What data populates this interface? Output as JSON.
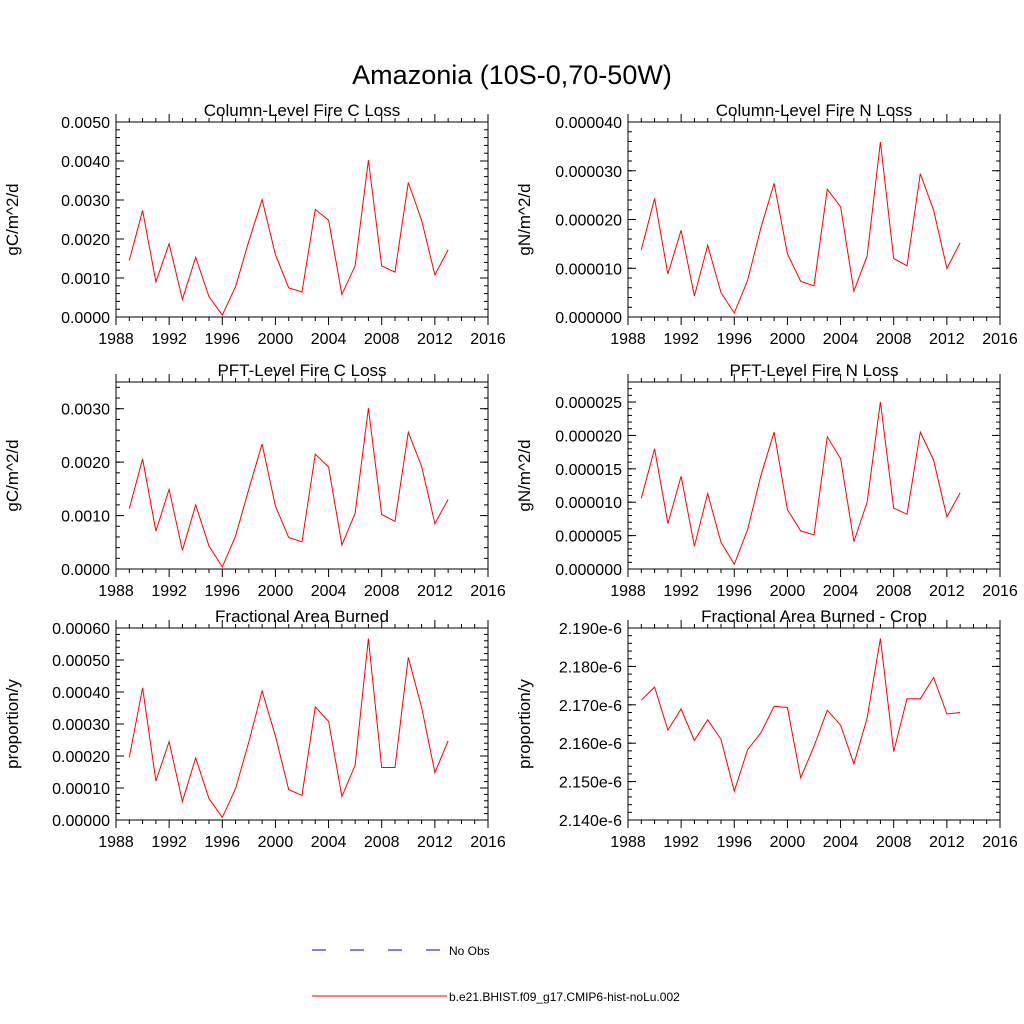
{
  "figure": {
    "title": "Amazonia (10S-0,70-50W)",
    "colors": {
      "model": "#ff0000",
      "obs": "#0000cc",
      "axes": "#000000"
    }
  },
  "legend": {
    "placement": "bottom-center",
    "items": [
      {
        "label": "No Obs",
        "style": "dashed",
        "color": "#0000cc"
      },
      {
        "label": "b.e21.BHIST.f09_g17.CMIP6-hist-noLu.002",
        "style": "solid",
        "color": "#ff0000"
      }
    ]
  },
  "chart_data": [
    {
      "type": "line",
      "title": "Column-Level Fire C Loss",
      "xlabel": "",
      "ylabel": "gC/m^2/d",
      "xlim": [
        1988,
        2016
      ],
      "ylim": [
        0,
        0.005
      ],
      "xticks": [
        "1988",
        "1992",
        "1996",
        "2000",
        "2004",
        "2008",
        "2012",
        "2016"
      ],
      "yticks": [
        "0.0000",
        "0.0010",
        "0.0020",
        "0.0030",
        "0.0040",
        "0.0050"
      ],
      "x": [
        1989,
        1990,
        1991,
        1992,
        1993,
        1994,
        1995,
        1996,
        1997,
        1998,
        1999,
        2000,
        2001,
        2002,
        2003,
        2004,
        2005,
        2006,
        2007,
        2008,
        2009,
        2010,
        2011,
        2012,
        2013
      ],
      "series": [
        {
          "name": "b.e21.BHIST.f09_g17.CMIP6-hist-noLu.002",
          "values": [
            0.00145,
            0.00273,
            0.0009,
            0.00188,
            0.00045,
            0.00153,
            0.00052,
            5e-05,
            0.00078,
            0.00195,
            0.00301,
            0.0016,
            0.00075,
            0.00064,
            0.00276,
            0.00248,
            0.00058,
            0.00131,
            0.00402,
            0.00131,
            0.00115,
            0.00345,
            0.00248,
            0.00108,
            0.00172
          ]
        }
      ]
    },
    {
      "type": "line",
      "title": "Column-Level Fire N Loss",
      "xlabel": "",
      "ylabel": "gN/m^2/d",
      "xlim": [
        1988,
        2016
      ],
      "ylim": [
        0,
        4e-05
      ],
      "xticks": [
        "1988",
        "1992",
        "1996",
        "2000",
        "2004",
        "2008",
        "2012",
        "2016"
      ],
      "yticks": [
        "0.000000",
        "0.000010",
        "0.000020",
        "0.000030",
        "0.000040"
      ],
      "x": [
        1989,
        1990,
        1991,
        1992,
        1993,
        1994,
        1995,
        1996,
        1997,
        1998,
        1999,
        2000,
        2001,
        2002,
        2003,
        2004,
        2005,
        2006,
        2007,
        2008,
        2009,
        2010,
        2011,
        2012,
        2013
      ],
      "series": [
        {
          "name": "b.e21.BHIST.f09_g17.CMIP6-hist-noLu.002",
          "values": [
            1.38e-05,
            2.43e-05,
            8.8e-06,
            1.78e-05,
            4.3e-06,
            1.47e-05,
            5e-06,
            8e-07,
            7.5e-06,
            1.83e-05,
            2.74e-05,
            1.3e-05,
            7.3e-06,
            6.4e-06,
            2.62e-05,
            2.26e-05,
            5.3e-06,
            1.25e-05,
            3.59e-05,
            1.2e-05,
            1.05e-05,
            2.94e-05,
            2.19e-05,
            1e-05,
            1.52e-05
          ]
        }
      ]
    },
    {
      "type": "line",
      "title": "PFT-Level Fire C Loss",
      "xlabel": "",
      "ylabel": "gC/m^2/d",
      "xlim": [
        1988,
        2016
      ],
      "ylim": [
        0,
        0.0035
      ],
      "xticks": [
        "1988",
        "1992",
        "1996",
        "2000",
        "2004",
        "2008",
        "2012",
        "2016"
      ],
      "yticks": [
        "0.0000",
        "0.0010",
        "0.0020",
        "0.0030"
      ],
      "x": [
        1989,
        1990,
        1991,
        1992,
        1993,
        1994,
        1995,
        1996,
        1997,
        1998,
        1999,
        2000,
        2001,
        2002,
        2003,
        2004,
        2005,
        2006,
        2007,
        2008,
        2009,
        2010,
        2011,
        2012,
        2013
      ],
      "series": [
        {
          "name": "b.e21.BHIST.f09_g17.CMIP6-hist-noLu.002",
          "values": [
            0.00113,
            0.00206,
            0.00071,
            0.00149,
            0.00035,
            0.0012,
            0.00043,
            4e-05,
            0.00062,
            0.0015,
            0.00234,
            0.00118,
            0.00059,
            0.00051,
            0.00215,
            0.00191,
            0.00045,
            0.00104,
            0.00301,
            0.00102,
            0.00089,
            0.00256,
            0.00192,
            0.00085,
            0.0013
          ]
        }
      ]
    },
    {
      "type": "line",
      "title": "PFT-Level Fire N Loss",
      "xlabel": "",
      "ylabel": "gN/m^2/d",
      "xlim": [
        1988,
        2016
      ],
      "ylim": [
        0,
        2.8e-05
      ],
      "xticks": [
        "1988",
        "1992",
        "1996",
        "2000",
        "2004",
        "2008",
        "2012",
        "2016"
      ],
      "yticks": [
        "0.000000",
        "0.000005",
        "0.000010",
        "0.000015",
        "0.000020",
        "0.000025"
      ],
      "x": [
        1989,
        1990,
        1991,
        1992,
        1993,
        1994,
        1995,
        1996,
        1997,
        1998,
        1999,
        2000,
        2001,
        2002,
        2003,
        2004,
        2005,
        2006,
        2007,
        2008,
        2009,
        2010,
        2011,
        2012,
        2013
      ],
      "series": [
        {
          "name": "b.e21.BHIST.f09_g17.CMIP6-hist-noLu.002",
          "values": [
            1.06e-05,
            1.8e-05,
            6.8e-06,
            1.39e-05,
            3.4e-06,
            1.13e-05,
            4e-06,
            7e-07,
            5.9e-06,
            1.4e-05,
            2.05e-05,
            8.9e-06,
            5.7e-06,
            5.1e-06,
            1.98e-05,
            1.65e-05,
            4.1e-06,
            1e-05,
            2.5e-05,
            9.1e-06,
            8.2e-06,
            2.05e-05,
            1.63e-05,
            7.8e-06,
            1.14e-05
          ]
        }
      ]
    },
    {
      "type": "line",
      "title": "Fractional Area Burned",
      "xlabel": "",
      "ylabel": "proportion/y",
      "xlim": [
        1988,
        2016
      ],
      "ylim": [
        0,
        0.0006
      ],
      "xticks": [
        "1988",
        "1992",
        "1996",
        "2000",
        "2004",
        "2008",
        "2012",
        "2016"
      ],
      "yticks": [
        "0.00000",
        "0.00010",
        "0.00020",
        "0.00030",
        "0.00040",
        "0.00050",
        "0.00060"
      ],
      "x": [
        1989,
        1990,
        1991,
        1992,
        1993,
        1994,
        1995,
        1996,
        1997,
        1998,
        1999,
        2000,
        2001,
        2002,
        2003,
        2004,
        2005,
        2006,
        2007,
        2008,
        2009,
        2010,
        2011,
        2012,
        2013
      ],
      "series": [
        {
          "name": "b.e21.BHIST.f09_g17.CMIP6-hist-noLu.002",
          "values": [
            0.000196,
            0.000413,
            0.000122,
            0.000245,
            5.8e-05,
            0.000194,
            6.7e-05,
            8e-06,
            9.8e-05,
            0.000245,
            0.000403,
            0.000263,
            9.5e-05,
            7.7e-05,
            0.000353,
            0.000308,
            7.3e-05,
            0.000171,
            0.000567,
            0.000164,
            0.000164,
            0.000508,
            0.000352,
            0.000148,
            0.000247
          ]
        }
      ]
    },
    {
      "type": "line",
      "title": "Fractional Area Burned - Crop",
      "xlabel": "",
      "ylabel": "proportion/y",
      "xlim": [
        1988,
        2016
      ],
      "ylim": [
        2.14e-06,
        2.19e-06
      ],
      "xticks": [
        "1988",
        "1992",
        "1996",
        "2000",
        "2004",
        "2008",
        "2012",
        "2016"
      ],
      "yticks": [
        "2.140e-6",
        "2.150e-6",
        "2.160e-6",
        "2.170e-6",
        "2.180e-6",
        "2.190e-6"
      ],
      "x": [
        1989,
        1990,
        1991,
        1992,
        1993,
        1994,
        1995,
        1996,
        1997,
        1998,
        1999,
        2000,
        2001,
        2002,
        2003,
        2004,
        2005,
        2006,
        2007,
        2008,
        2009,
        2010,
        2011,
        2012,
        2013
      ],
      "series": [
        {
          "name": "b.e21.BHIST.f09_g17.CMIP6-hist-noLu.002",
          "values": [
            2.1712e-06,
            2.1746e-06,
            2.1634e-06,
            2.1689e-06,
            2.1607e-06,
            2.1661e-06,
            2.161e-06,
            2.1475e-06,
            2.1583e-06,
            2.1627e-06,
            2.1696e-06,
            2.1693e-06,
            2.151e-06,
            2.1592e-06,
            2.1686e-06,
            2.1647e-06,
            2.1546e-06,
            2.1665e-06,
            2.1873e-06,
            2.1578e-06,
            2.1716e-06,
            2.1716e-06,
            2.1771e-06,
            2.1676e-06,
            2.168e-06
          ]
        }
      ]
    }
  ]
}
